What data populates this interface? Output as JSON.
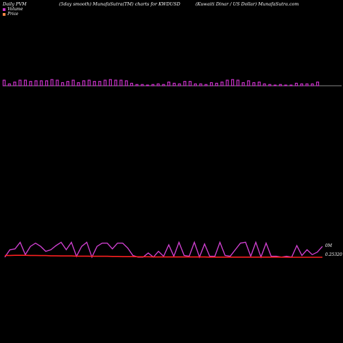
{
  "header": {
    "left": "Daily PVM",
    "center": "(5day smooth) MunafaSutra(TM) charts for KWDUSD",
    "right": "(Kuwaiti  Dinar / US Dollar) MunafaSutra.com"
  },
  "legend": [
    {
      "label": "Volume",
      "color": "#cc33cc"
    },
    {
      "label": "Price",
      "color": "#ff8844"
    }
  ],
  "axis_labels": {
    "top": "0M",
    "bottom": "0.25320"
  },
  "chart_data": [
    {
      "type": "bar",
      "name": "Volume",
      "color": "#cc33cc",
      "baseline_color": "#888888",
      "ylim": [
        0,
        1
      ],
      "values": [
        0.9,
        0.3,
        0.6,
        0.9,
        0.9,
        0.7,
        0.8,
        0.8,
        0.8,
        1.0,
        0.9,
        0.5,
        0.7,
        0.9,
        0.5,
        0.8,
        0.9,
        0.7,
        0.7,
        0.9,
        1.0,
        0.9,
        0.9,
        0.8,
        0.4,
        0.2,
        0.2,
        0.1,
        0.2,
        0.3,
        0.2,
        0.6,
        0.4,
        0.3,
        0.7,
        0.7,
        0.3,
        0.3,
        0.2,
        0.5,
        0.4,
        0.6,
        0.9,
        1.0,
        0.9,
        0.5,
        0.8,
        0.5,
        0.6,
        0.3,
        0.2,
        0.1,
        0.2,
        0.1,
        0.1,
        0.4,
        0.3,
        0.3,
        0.3,
        0.6
      ]
    },
    {
      "type": "line",
      "name": "Price",
      "series": [
        {
          "name": "PVM",
          "color": "#d040d0",
          "values": [
            0.05,
            0.5,
            0.55,
            0.95,
            0.2,
            0.7,
            0.9,
            0.7,
            0.4,
            0.5,
            0.75,
            0.95,
            0.5,
            0.95,
            0.1,
            0.7,
            0.95,
            0.05,
            0.7,
            0.9,
            0.9,
            0.55,
            0.9,
            0.9,
            0.6,
            0.15,
            0.05,
            0.05,
            0.3,
            0.05,
            0.4,
            0.1,
            0.8,
            0.1,
            0.95,
            0.15,
            0.1,
            0.95,
            0.05,
            0.85,
            0.1,
            0.1,
            0.95,
            0.15,
            0.1,
            0.5,
            0.9,
            0.95,
            0.1,
            0.95,
            0.05,
            0.9,
            0.1,
            0.1,
            0.05,
            0.1,
            0.05,
            0.75,
            0.15,
            0.5,
            0.2,
            0.35,
            0.7
          ]
        },
        {
          "name": "Price",
          "color": "#ff2020",
          "values": [
            0.15,
            0.15,
            0.16,
            0.16,
            0.16,
            0.15,
            0.15,
            0.14,
            0.14,
            0.13,
            0.13,
            0.12,
            0.12,
            0.12,
            0.11,
            0.11,
            0.11,
            0.1,
            0.1,
            0.1,
            0.1,
            0.09,
            0.09,
            0.08,
            0.08,
            0.08,
            0.07,
            0.07,
            0.07,
            0.06,
            0.06,
            0.06,
            0.06,
            0.06,
            0.06,
            0.06,
            0.06,
            0.06,
            0.06,
            0.06,
            0.05,
            0.05,
            0.05,
            0.05,
            0.05,
            0.05,
            0.05,
            0.05,
            0.05,
            0.05,
            0.05,
            0.05,
            0.05,
            0.05,
            0.05,
            0.04,
            0.04,
            0.04,
            0.04,
            0.04,
            0.04,
            0.04,
            0.04
          ]
        }
      ]
    }
  ]
}
